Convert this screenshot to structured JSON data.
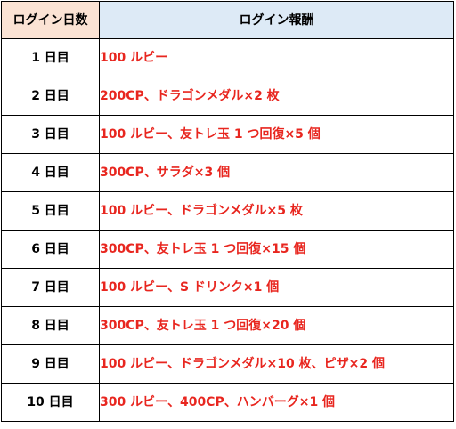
{
  "table": {
    "headers": {
      "day": "ログイン日数",
      "reward": "ログイン報酬"
    },
    "rows": [
      {
        "day": "1 日目",
        "reward": "100 ルビー"
      },
      {
        "day": "2 日目",
        "reward": "200CP、ドラゴンメダル×2 枚"
      },
      {
        "day": "3 日目",
        "reward": "100 ルビー、友トレ玉 1 つ回復×5 個"
      },
      {
        "day": "4 日目",
        "reward": "300CP、サラダ×3 個"
      },
      {
        "day": "5 日目",
        "reward": "100 ルビー、ドラゴンメダル×5 枚"
      },
      {
        "day": "6 日目",
        "reward": "300CP、友トレ玉 1 つ回復×15 個"
      },
      {
        "day": "7 日目",
        "reward": "100 ルビー、S ドリンク×1 個"
      },
      {
        "day": "8 日目",
        "reward": "300CP、友トレ玉 1 つ回復×20 個"
      },
      {
        "day": "9 日目",
        "reward": "100 ルビー、ドラゴンメダル×10 枚、ピザ×2 個"
      },
      {
        "day": "10 日目",
        "reward": "300 ルビー、400CP、ハンバーグ×1 個"
      }
    ]
  },
  "colors": {
    "header_day_bg": "#fbe3d4",
    "header_reward_bg": "#ddeaf6",
    "reward_text": "#e8261f",
    "border": "#000000"
  }
}
